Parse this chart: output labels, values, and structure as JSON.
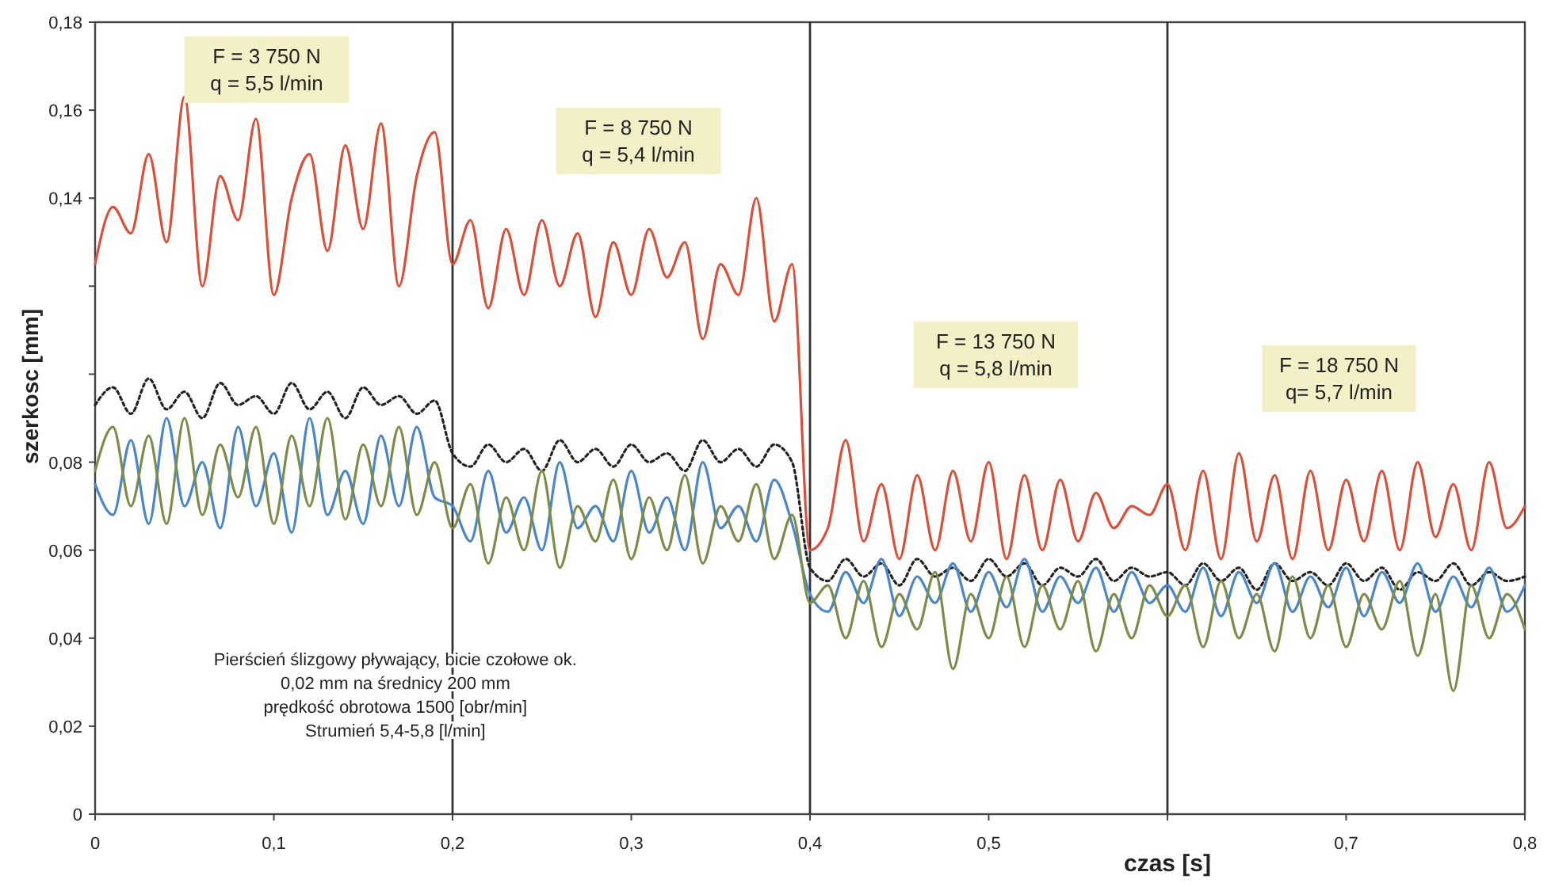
{
  "chart_data": {
    "type": "line",
    "xlabel": "czas [s]",
    "ylabel": "szerkosc [mm]",
    "xlim": [
      0,
      0.8
    ],
    "ylim": [
      0,
      0.18
    ],
    "xticks": [
      0,
      {
        "value": 0.1,
        "label": "0,1"
      },
      {
        "value": 0.2,
        "label": "0,2"
      },
      {
        "value": 0.3,
        "label": "0,3"
      },
      {
        "value": 0.4,
        "label": "0,4"
      },
      {
        "value": 0.5,
        "label": "0,5"
      },
      {
        "value": 0.6,
        "label": null
      },
      {
        "value": 0.7,
        "label": "0,7"
      },
      {
        "value": 0.8,
        "label": "0,8"
      }
    ],
    "yticks": [
      0,
      {
        "value": 0.02,
        "label": "0,02"
      },
      {
        "value": 0.04,
        "label": "0,04"
      },
      {
        "value": 0.06,
        "label": "0,06"
      },
      {
        "value": 0.08,
        "label": "0,08"
      },
      {
        "value": 0.1,
        "label": null
      },
      {
        "value": 0.12,
        "label": null
      },
      {
        "value": 0.14,
        "label": "0,14"
      },
      {
        "value": 0.16,
        "label": "0,16"
      },
      {
        "value": 0.18,
        "label": "0,18"
      }
    ],
    "grid": false,
    "marker": "none",
    "x": [
      0,
      0.01,
      0.02,
      0.03,
      0.04,
      0.05,
      0.06,
      0.07,
      0.08,
      0.09,
      0.1,
      0.11,
      0.12,
      0.13,
      0.14,
      0.15,
      0.16,
      0.17,
      0.18,
      0.19,
      0.2,
      0.21,
      0.22,
      0.23,
      0.24,
      0.25,
      0.26,
      0.27,
      0.28,
      0.29,
      0.3,
      0.31,
      0.32,
      0.33,
      0.34,
      0.35,
      0.36,
      0.37,
      0.38,
      0.39,
      0.4,
      0.41,
      0.42,
      0.43,
      0.44,
      0.45,
      0.46,
      0.47,
      0.48,
      0.49,
      0.5,
      0.51,
      0.52,
      0.53,
      0.54,
      0.55,
      0.56,
      0.57,
      0.58,
      0.59,
      0.6,
      0.61,
      0.62,
      0.63,
      0.64,
      0.65,
      0.66,
      0.67,
      0.68,
      0.69,
      0.7,
      0.71,
      0.72,
      0.73,
      0.74,
      0.75,
      0.76,
      0.77,
      0.78,
      0.79,
      0.8
    ],
    "series": [
      {
        "color": "#d9513a",
        "line_style": "solid",
        "values": [
          0.125,
          0.138,
          0.132,
          0.15,
          0.13,
          0.163,
          0.12,
          0.145,
          0.135,
          0.158,
          0.118,
          0.14,
          0.15,
          0.128,
          0.152,
          0.133,
          0.157,
          0.12,
          0.145,
          0.155,
          0.125,
          0.135,
          0.115,
          0.133,
          0.118,
          0.135,
          0.12,
          0.132,
          0.113,
          0.13,
          0.118,
          0.133,
          0.122,
          0.13,
          0.108,
          0.125,
          0.118,
          0.14,
          0.112,
          0.125,
          0.06,
          0.065,
          0.085,
          0.062,
          0.075,
          0.058,
          0.077,
          0.06,
          0.078,
          0.062,
          0.08,
          0.058,
          0.077,
          0.06,
          0.076,
          0.062,
          0.073,
          0.065,
          0.07,
          0.068,
          0.075,
          0.06,
          0.078,
          0.058,
          0.082,
          0.062,
          0.077,
          0.058,
          0.078,
          0.06,
          0.076,
          0.062,
          0.078,
          0.06,
          0.08,
          0.063,
          0.075,
          0.06,
          0.08,
          0.065,
          0.07
        ]
      },
      {
        "color": "#222222",
        "line_style": "dotted",
        "values": [
          0.093,
          0.097,
          0.091,
          0.099,
          0.092,
          0.096,
          0.09,
          0.098,
          0.093,
          0.095,
          0.091,
          0.098,
          0.092,
          0.096,
          0.09,
          0.097,
          0.093,
          0.095,
          0.091,
          0.094,
          0.082,
          0.079,
          0.084,
          0.08,
          0.083,
          0.078,
          0.085,
          0.08,
          0.083,
          0.079,
          0.084,
          0.08,
          0.082,
          0.078,
          0.085,
          0.08,
          0.083,
          0.079,
          0.084,
          0.08,
          0.056,
          0.053,
          0.058,
          0.054,
          0.057,
          0.052,
          0.058,
          0.054,
          0.056,
          0.053,
          0.058,
          0.054,
          0.057,
          0.052,
          0.056,
          0.054,
          0.058,
          0.053,
          0.056,
          0.054,
          0.055,
          0.052,
          0.057,
          0.053,
          0.056,
          0.051,
          0.057,
          0.053,
          0.055,
          0.052,
          0.057,
          0.053,
          0.056,
          0.051,
          0.055,
          0.053,
          0.057,
          0.052,
          0.055,
          0.053,
          0.054
        ]
      },
      {
        "color": "#4a86c8",
        "line_style": "solid",
        "values": [
          0.075,
          0.068,
          0.085,
          0.066,
          0.09,
          0.07,
          0.08,
          0.065,
          0.088,
          0.07,
          0.082,
          0.064,
          0.09,
          0.068,
          0.078,
          0.066,
          0.086,
          0.07,
          0.088,
          0.072,
          0.07,
          0.062,
          0.078,
          0.064,
          0.072,
          0.06,
          0.08,
          0.065,
          0.07,
          0.062,
          0.078,
          0.064,
          0.072,
          0.06,
          0.08,
          0.065,
          0.07,
          0.062,
          0.076,
          0.066,
          0.05,
          0.046,
          0.055,
          0.048,
          0.058,
          0.045,
          0.054,
          0.048,
          0.057,
          0.046,
          0.055,
          0.047,
          0.058,
          0.046,
          0.054,
          0.048,
          0.056,
          0.046,
          0.055,
          0.048,
          0.052,
          0.046,
          0.056,
          0.045,
          0.055,
          0.048,
          0.057,
          0.046,
          0.054,
          0.047,
          0.056,
          0.045,
          0.055,
          0.048,
          0.057,
          0.046,
          0.054,
          0.047,
          0.056,
          0.046,
          0.052
        ]
      },
      {
        "color": "#7d8c4a",
        "line_style": "solid",
        "values": [
          0.078,
          0.088,
          0.07,
          0.086,
          0.066,
          0.09,
          0.068,
          0.084,
          0.072,
          0.088,
          0.066,
          0.086,
          0.07,
          0.09,
          0.067,
          0.084,
          0.07,
          0.088,
          0.068,
          0.08,
          0.065,
          0.075,
          0.057,
          0.072,
          0.06,
          0.078,
          0.056,
          0.07,
          0.062,
          0.076,
          0.058,
          0.072,
          0.06,
          0.077,
          0.057,
          0.07,
          0.062,
          0.075,
          0.058,
          0.068,
          0.048,
          0.052,
          0.04,
          0.053,
          0.038,
          0.05,
          0.042,
          0.055,
          0.033,
          0.05,
          0.04,
          0.054,
          0.038,
          0.052,
          0.042,
          0.053,
          0.037,
          0.05,
          0.04,
          0.052,
          0.045,
          0.052,
          0.038,
          0.053,
          0.04,
          0.05,
          0.037,
          0.054,
          0.04,
          0.052,
          0.038,
          0.05,
          0.042,
          0.053,
          0.036,
          0.05,
          0.028,
          0.052,
          0.04,
          0.05,
          0.042
        ]
      }
    ],
    "ref_lines": [
      {
        "axis": "x",
        "value": 0.2,
        "color": "#333333"
      },
      {
        "axis": "x",
        "value": 0.4,
        "color": "#333333"
      },
      {
        "axis": "x",
        "value": 0.6,
        "color": "#333333"
      }
    ],
    "annotations": [
      "F = 3 750 N\nq = 5,5 l/min",
      "F = 8 750 N\nq = 5,4 l/min",
      "F = 13 750 N\nq = 5,8 l/min",
      "F = 18 750 N\nq= 5,7 l/min",
      "Pierścień ślizgowy pływający, bicie czołowe ok.\n0,02 mm na średnicy 200 mm\nprędkość obrotowa 1500 [obr/min]\nStrumień 5,4-5,8 [l/min]"
    ]
  }
}
